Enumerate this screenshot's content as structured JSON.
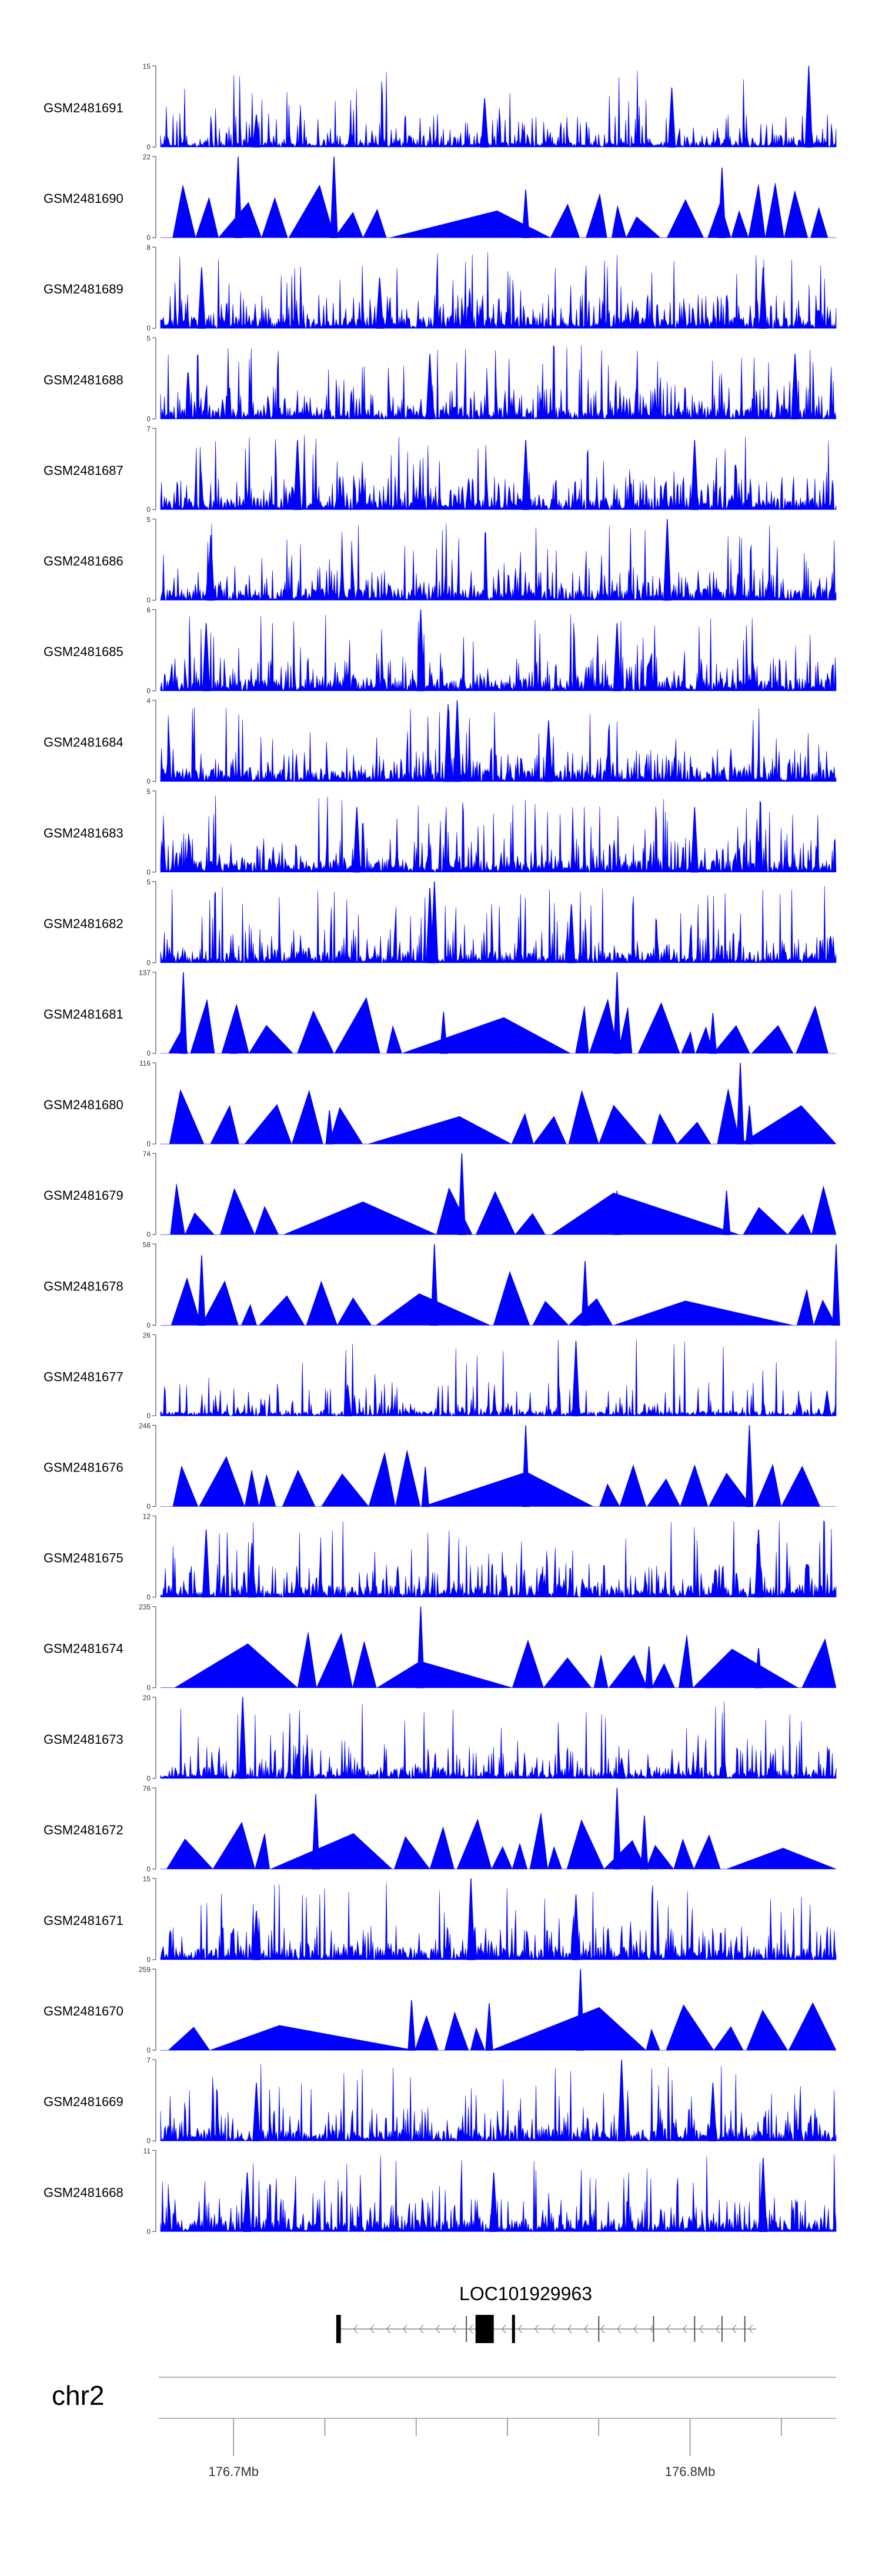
{
  "chart_data": {
    "type": "area",
    "title": "",
    "chromosome": "chr2",
    "x_range_mb": [
      176.664,
      176.812
    ],
    "xlabel": "",
    "ylabel": "",
    "fill_color": "#0000ff",
    "axis_color": "#555555",
    "x_ticks": [
      {
        "pos": 176.68,
        "label": "176.7Mb"
      },
      {
        "pos": 176.7,
        "label": ""
      },
      {
        "pos": 176.72,
        "label": ""
      },
      {
        "pos": 176.74,
        "label": ""
      },
      {
        "pos": 176.76,
        "label": ""
      },
      {
        "pos": 176.78,
        "label": "176.8Mb"
      },
      {
        "pos": 176.8,
        "label": ""
      }
    ],
    "gene": {
      "name": "LOC101929963",
      "start_mb": 176.7025,
      "end_mb": 176.7945,
      "strand": "-",
      "exons": [
        [
          176.7025,
          176.7035
        ],
        [
          176.733,
          176.737
        ],
        [
          176.741,
          176.7415
        ]
      ],
      "introns_markers": [
        176.731,
        176.76,
        176.772,
        176.781,
        176.787,
        176.792
      ]
    },
    "tracks": [
      {
        "name": "GSM2481691",
        "ymax": 15,
        "kind": "dense",
        "seed": 1,
        "density": 0.55,
        "peaks": [
          {
            "x": 176.806,
            "y": 15
          },
          {
            "x": 176.776,
            "y": 11
          },
          {
            "x": 176.735,
            "y": 9
          },
          {
            "x": 176.685,
            "y": 6
          }
        ]
      },
      {
        "name": "GSM2481690",
        "ymax": 22,
        "kind": "tri",
        "seed": 2,
        "peaks": [
          {
            "x": 176.681,
            "y": 22
          },
          {
            "x": 176.702,
            "y": 22
          },
          {
            "x": 176.787,
            "y": 19
          },
          {
            "x": 176.744,
            "y": 13
          }
        ]
      },
      {
        "name": "GSM2481689",
        "ymax": 8,
        "kind": "dense",
        "seed": 3,
        "density": 0.85,
        "peaks": [
          {
            "x": 176.673,
            "y": 6
          },
          {
            "x": 176.712,
            "y": 5
          },
          {
            "x": 176.796,
            "y": 6
          }
        ]
      },
      {
        "name": "GSM2481688",
        "ymax": 5,
        "kind": "dense",
        "seed": 4,
        "density": 0.8,
        "peaks": [
          {
            "x": 176.723,
            "y": 4
          },
          {
            "x": 176.803,
            "y": 4
          }
        ]
      },
      {
        "name": "GSM2481687",
        "ymax": 7,
        "kind": "dense",
        "seed": 5,
        "density": 0.85,
        "peaks": [
          {
            "x": 176.694,
            "y": 6
          },
          {
            "x": 176.744,
            "y": 6
          },
          {
            "x": 176.781,
            "y": 6
          }
        ]
      },
      {
        "name": "GSM2481686",
        "ymax": 5,
        "kind": "dense",
        "seed": 6,
        "density": 0.8,
        "peaks": [
          {
            "x": 176.775,
            "y": 5
          },
          {
            "x": 176.675,
            "y": 4
          }
        ]
      },
      {
        "name": "GSM2481685",
        "ymax": 6,
        "kind": "dense",
        "seed": 7,
        "density": 0.8,
        "peaks": [
          {
            "x": 176.721,
            "y": 6
          },
          {
            "x": 176.764,
            "y": 5
          },
          {
            "x": 176.674,
            "y": 5
          }
        ]
      },
      {
        "name": "GSM2481684",
        "ymax": 4,
        "kind": "dense",
        "seed": 8,
        "density": 0.8,
        "peaks": [
          {
            "x": 176.729,
            "y": 4
          },
          {
            "x": 176.727,
            "y": 3.8
          },
          {
            "x": 176.749,
            "y": 3
          }
        ]
      },
      {
        "name": "GSM2481683",
        "ymax": 5,
        "kind": "dense",
        "seed": 9,
        "density": 0.8,
        "peaks": [
          {
            "x": 176.707,
            "y": 4
          },
          {
            "x": 176.781,
            "y": 4
          }
        ]
      },
      {
        "name": "GSM2481682",
        "ymax": 5,
        "kind": "dense",
        "seed": 10,
        "density": 0.7,
        "peaks": [
          {
            "x": 176.724,
            "y": 5
          },
          {
            "x": 176.723,
            "y": 4.6
          },
          {
            "x": 176.754,
            "y": 3.6
          }
        ]
      },
      {
        "name": "GSM2481681",
        "ymax": 137,
        "kind": "tri",
        "seed": 11,
        "peaks": [
          {
            "x": 176.669,
            "y": 137
          },
          {
            "x": 176.764,
            "y": 137
          },
          {
            "x": 176.68,
            "y": 65
          },
          {
            "x": 176.726,
            "y": 70
          },
          {
            "x": 176.785,
            "y": 68
          }
        ]
      },
      {
        "name": "GSM2481680",
        "ymax": 116,
        "kind": "tri",
        "seed": 12,
        "peaks": [
          {
            "x": 176.791,
            "y": 116
          },
          {
            "x": 176.793,
            "y": 55
          },
          {
            "x": 176.701,
            "y": 48
          }
        ]
      },
      {
        "name": "GSM2481679",
        "ymax": 74,
        "kind": "tri",
        "seed": 13,
        "peaks": [
          {
            "x": 176.73,
            "y": 74
          },
          {
            "x": 176.788,
            "y": 40
          },
          {
            "x": 176.764,
            "y": 40
          }
        ]
      },
      {
        "name": "GSM2481678",
        "ymax": 58,
        "kind": "tri",
        "seed": 14,
        "peaks": [
          {
            "x": 176.673,
            "y": 50
          },
          {
            "x": 176.724,
            "y": 58
          },
          {
            "x": 176.757,
            "y": 46
          },
          {
            "x": 176.812,
            "y": 58
          }
        ]
      },
      {
        "name": "GSM2481677",
        "ymax": 26,
        "kind": "dense",
        "seed": 15,
        "density": 0.35,
        "peaks": [
          {
            "x": 176.755,
            "y": 24
          },
          {
            "x": 176.705,
            "y": 10
          },
          {
            "x": 176.81,
            "y": 8
          }
        ]
      },
      {
        "name": "GSM2481676",
        "ymax": 246,
        "kind": "tri",
        "seed": 16,
        "peaks": [
          {
            "x": 176.744,
            "y": 246
          },
          {
            "x": 176.793,
            "y": 246
          },
          {
            "x": 176.722,
            "y": 120
          }
        ]
      },
      {
        "name": "GSM2481675",
        "ymax": 12,
        "kind": "dense",
        "seed": 17,
        "density": 0.7,
        "peaks": [
          {
            "x": 176.674,
            "y": 10
          },
          {
            "x": 176.795,
            "y": 10
          },
          {
            "x": 176.684,
            "y": 8
          }
        ]
      },
      {
        "name": "GSM2481674",
        "ymax": 235,
        "kind": "tri",
        "seed": 18,
        "peaks": [
          {
            "x": 176.721,
            "y": 235
          },
          {
            "x": 176.771,
            "y": 120
          },
          {
            "x": 176.795,
            "y": 115
          }
        ]
      },
      {
        "name": "GSM2481673",
        "ymax": 20,
        "kind": "dense",
        "seed": 19,
        "density": 0.55,
        "peaks": [
          {
            "x": 176.682,
            "y": 20
          },
          {
            "x": 176.694,
            "y": 6
          },
          {
            "x": 176.765,
            "y": 5
          }
        ]
      },
      {
        "name": "GSM2481672",
        "ymax": 76,
        "kind": "tri",
        "seed": 20,
        "peaks": [
          {
            "x": 176.764,
            "y": 76
          },
          {
            "x": 176.698,
            "y": 70
          },
          {
            "x": 176.77,
            "y": 50
          }
        ]
      },
      {
        "name": "GSM2481671",
        "ymax": 15,
        "kind": "dense",
        "seed": 21,
        "density": 0.75,
        "peaks": [
          {
            "x": 176.732,
            "y": 15
          },
          {
            "x": 176.755,
            "y": 12
          },
          {
            "x": 176.685,
            "y": 9
          }
        ]
      },
      {
        "name": "GSM2481670",
        "ymax": 259,
        "kind": "tri",
        "seed": 22,
        "peaks": [
          {
            "x": 176.756,
            "y": 259
          },
          {
            "x": 176.719,
            "y": 160
          },
          {
            "x": 176.736,
            "y": 150
          }
        ]
      },
      {
        "name": "GSM2481669",
        "ymax": 7,
        "kind": "dense",
        "seed": 23,
        "density": 0.75,
        "peaks": [
          {
            "x": 176.765,
            "y": 7
          },
          {
            "x": 176.785,
            "y": 5
          },
          {
            "x": 176.685,
            "y": 5
          }
        ]
      },
      {
        "name": "GSM2481668",
        "ymax": 11,
        "kind": "dense",
        "seed": 24,
        "density": 0.75,
        "peaks": [
          {
            "x": 176.796,
            "y": 10
          },
          {
            "x": 176.683,
            "y": 8
          },
          {
            "x": 176.737,
            "y": 8
          }
        ]
      }
    ]
  }
}
